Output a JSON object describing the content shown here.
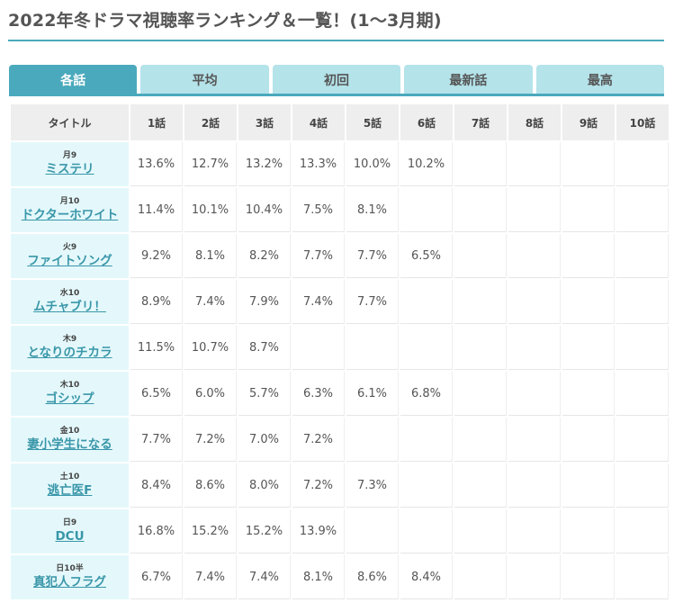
{
  "page": {
    "title": "2022年冬ドラマ視聴率ランキング＆一覧！(1～3月期)"
  },
  "tabs": [
    "各話",
    "平均",
    "初回",
    "最新話",
    "最高"
  ],
  "table": {
    "title_header": "タイトル",
    "episode_headers": [
      "1話",
      "2話",
      "3話",
      "4話",
      "5話",
      "6話",
      "7話",
      "8話",
      "9話",
      "10話"
    ],
    "rows": [
      {
        "slot": "月9",
        "title": "ミステリ",
        "values": [
          "13.6%",
          "12.7%",
          "13.2%",
          "13.3%",
          "10.0%",
          "10.2%",
          "",
          "",
          "",
          ""
        ]
      },
      {
        "slot": "月10",
        "title": "ドクターホワイト",
        "values": [
          "11.4%",
          "10.1%",
          "10.4%",
          "7.5%",
          "8.1%",
          "",
          "",
          "",
          "",
          ""
        ]
      },
      {
        "slot": "火9",
        "title": "ファイトソング",
        "values": [
          "9.2%",
          "8.1%",
          "8.2%",
          "7.7%",
          "7.7%",
          "6.5%",
          "",
          "",
          "",
          ""
        ]
      },
      {
        "slot": "水10",
        "title": "ムチャブリ！",
        "values": [
          "8.9%",
          "7.4%",
          "7.9%",
          "7.4%",
          "7.7%",
          "",
          "",
          "",
          "",
          ""
        ]
      },
      {
        "slot": "木9",
        "title": "となりのチカラ",
        "values": [
          "11.5%",
          "10.7%",
          "8.7%",
          "",
          "",
          "",
          "",
          "",
          "",
          ""
        ]
      },
      {
        "slot": "木10",
        "title": "ゴシップ",
        "values": [
          "6.5%",
          "6.0%",
          "5.7%",
          "6.3%",
          "6.1%",
          "6.8%",
          "",
          "",
          "",
          ""
        ]
      },
      {
        "slot": "金10",
        "title": "妻小学生になる",
        "values": [
          "7.7%",
          "7.2%",
          "7.0%",
          "7.2%",
          "",
          "",
          "",
          "",
          "",
          ""
        ]
      },
      {
        "slot": "土10",
        "title": "逃亡医F",
        "values": [
          "8.4%",
          "8.6%",
          "8.0%",
          "7.2%",
          "7.3%",
          "",
          "",
          "",
          "",
          ""
        ]
      },
      {
        "slot": "日9",
        "title": "DCU",
        "values": [
          "16.8%",
          "15.2%",
          "15.2%",
          "13.9%",
          "",
          "",
          "",
          "",
          "",
          ""
        ]
      },
      {
        "slot": "日10半",
        "title": "真犯人フラグ",
        "values": [
          "6.7%",
          "7.4%",
          "7.4%",
          "8.1%",
          "8.6%",
          "8.4%",
          "",
          "",
          "",
          ""
        ]
      }
    ]
  },
  "colors": {
    "accent": "#4aa9bc",
    "tab_inactive": "#b4e3ea",
    "title_cell_bg": "#e4f8fb",
    "link": "#3996a9"
  }
}
